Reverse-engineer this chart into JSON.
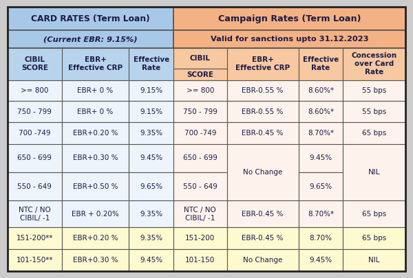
{
  "title_left": "CARD RATES (Term Loan)",
  "subtitle_left": "(Current EBR: 9.15%)",
  "title_right": "Campaign Rates (Term Loan)",
  "subtitle_right": "Valid for sanctions upto 31.12.2023",
  "rows": [
    [
      ">= 800",
      "EBR+ 0 %",
      "9.15%",
      ">= 800",
      "EBR-0.55 %",
      "8.60%*",
      "55 bps"
    ],
    [
      "750 - 799",
      "EBR+ 0 %",
      "9.15%",
      "750 - 799",
      "EBR-0.55 %",
      "8.60%*",
      "55 bps"
    ],
    [
      "700 -749",
      "EBR+0.20 %",
      "9.35%",
      "700 -749",
      "EBR-0.45 %",
      "8.70%*",
      "65 bps"
    ],
    [
      "650 - 699",
      "EBR+0.30 %",
      "9.45%",
      "650 - 699",
      "No Change",
      "9.45%",
      "NIL"
    ],
    [
      "550 - 649",
      "EBR+0.50 %",
      "9.65%",
      "550 - 649",
      "No Change",
      "9.65%",
      "NIL"
    ],
    [
      "NTC / NO\nCIBIL/ -1",
      "EBR + 0.20%",
      "9.35%",
      "NTC / NO\nCIBIL/ -1",
      "EBR-0.45 %",
      "8.70%*",
      "65 bps"
    ],
    [
      "151-200**",
      "EBR+0.20 %",
      "9.35%",
      "151-200",
      "EBR-0.45 %",
      "8.70%",
      "65 bps"
    ],
    [
      "101-150**",
      "EBR+0.30 %",
      "9.45%",
      "101-150",
      "No Change",
      "9.45%",
      "NIL"
    ]
  ],
  "color_header_left": "#a8c8e8",
  "color_header_right": "#f4b183",
  "color_col_hdr_left": "#b8d4ec",
  "color_col_hdr_right": "#f8c8a0",
  "color_row_light_left": "#eef4fb",
  "color_row_light_right": "#fef3ec",
  "color_row_yellow": "#fdfad0",
  "color_border": "#555555",
  "color_text": "#1a1a4a",
  "bg_color": "#cccccc"
}
